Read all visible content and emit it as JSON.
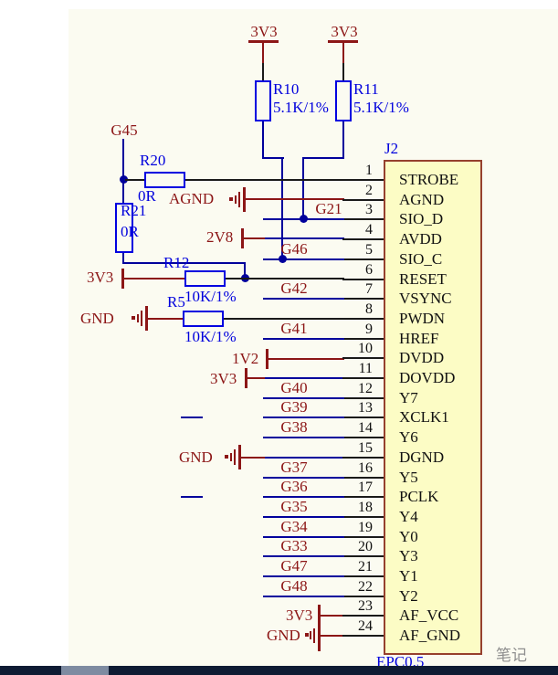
{
  "connector": {
    "designator": "J2",
    "part_text": "EPC0.5",
    "pins": [
      {
        "number": "1",
        "name": "STROBE"
      },
      {
        "number": "2",
        "name": "AGND"
      },
      {
        "number": "3",
        "name": "SIO_D"
      },
      {
        "number": "4",
        "name": "AVDD"
      },
      {
        "number": "5",
        "name": "SIO_C"
      },
      {
        "number": "6",
        "name": "RESET"
      },
      {
        "number": "7",
        "name": "VSYNC"
      },
      {
        "number": "8",
        "name": "PWDN"
      },
      {
        "number": "9",
        "name": "HREF"
      },
      {
        "number": "10",
        "name": "DVDD"
      },
      {
        "number": "11",
        "name": "DOVDD"
      },
      {
        "number": "12",
        "name": "Y7"
      },
      {
        "number": "13",
        "name": "XCLK1"
      },
      {
        "number": "14",
        "name": "Y6"
      },
      {
        "number": "15",
        "name": "DGND"
      },
      {
        "number": "16",
        "name": "Y5"
      },
      {
        "number": "17",
        "name": "PCLK"
      },
      {
        "number": "18",
        "name": "Y4"
      },
      {
        "number": "19",
        "name": "Y0"
      },
      {
        "number": "20",
        "name": "Y3"
      },
      {
        "number": "21",
        "name": "Y1"
      },
      {
        "number": "22",
        "name": "Y2"
      },
      {
        "number": "23",
        "name": "AF_VCC"
      },
      {
        "number": "24",
        "name": "AF_GND"
      }
    ]
  },
  "net_rows": [
    {
      "pin": 3,
      "label": "G21"
    },
    {
      "pin": 5,
      "label": "G46"
    },
    {
      "pin": 7,
      "label": "G42"
    },
    {
      "pin": 9,
      "label": "G41"
    },
    {
      "pin": 12,
      "label": "G40"
    },
    {
      "pin": 13,
      "label": "G39"
    },
    {
      "pin": 14,
      "label": "G38"
    },
    {
      "pin": 16,
      "label": "G37"
    },
    {
      "pin": 17,
      "label": "G36"
    },
    {
      "pin": 18,
      "label": "G35"
    },
    {
      "pin": 19,
      "label": "G34"
    },
    {
      "pin": 20,
      "label": "G33"
    },
    {
      "pin": 21,
      "label": "G47"
    },
    {
      "pin": 22,
      "label": "G48"
    }
  ],
  "resistors": {
    "r10": {
      "designator": "R10",
      "value": "5.1K/1%"
    },
    "r11": {
      "designator": "R11",
      "value": "5.1K/1%"
    },
    "r20": {
      "designator": "R20",
      "value": "0R"
    },
    "r21": {
      "designator": "R21",
      "value": "0R"
    },
    "r12": {
      "designator": "R12",
      "value": "10K/1%"
    },
    "r5": {
      "designator": "R5",
      "value": "10K/1%"
    }
  },
  "power_ports": {
    "pullup_top_left": "3V3",
    "pullup_top_right": "3V3",
    "g45": "G45",
    "agnd": "AGND",
    "avdd": "2V8",
    "reset_pull": "3V3",
    "pwdn_pull": "GND",
    "dvdd": "1V2",
    "dovdd": "3V3",
    "dgnd": "GND",
    "af_vcc": "3V3",
    "af_gnd": "GND"
  },
  "watermark": "笔记",
  "colors": {
    "wire_blue": "#00009C",
    "power_red": "#8C1616",
    "designator_blue": "#0000DD",
    "pin_black": "#1A1A1A",
    "box_fill": "#FCFCC5",
    "box_border": "#96402E",
    "sheet_bg": "#FBFBF1",
    "bottom_bar": "#0E1B33"
  }
}
